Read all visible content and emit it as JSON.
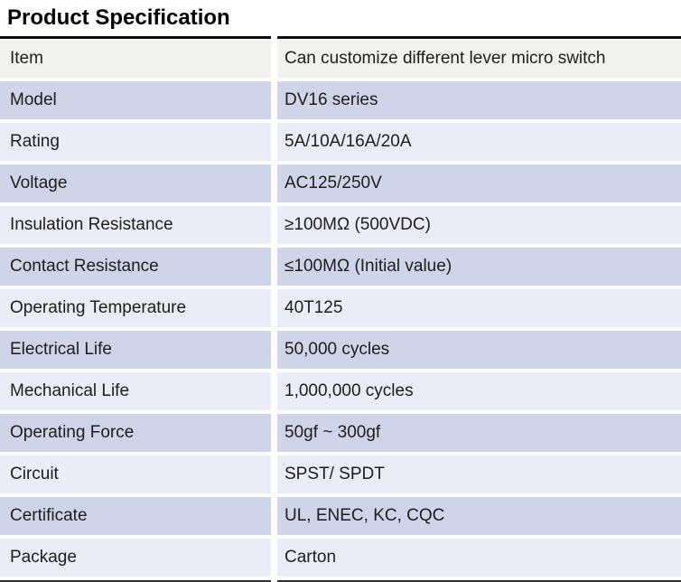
{
  "page": {
    "title": "Product Specification"
  },
  "table": {
    "columns": [
      "label",
      "value"
    ],
    "rows": [
      {
        "label": "Item",
        "value": "Can customize different lever micro switch",
        "tone": "gray"
      },
      {
        "label": "Model",
        "value": "DV16 series",
        "tone": "dark"
      },
      {
        "label": "Rating",
        "value": "5A/10A/16A/20A",
        "tone": "light"
      },
      {
        "label": "Voltage",
        "value": "AC125/250V",
        "tone": "dark"
      },
      {
        "label": "Insulation Resistance",
        "value": "≥100MΩ (500VDC)",
        "tone": "light"
      },
      {
        "label": "Contact Resistance",
        "value": "≤100MΩ (Initial value)",
        "tone": "dark"
      },
      {
        "label": "Operating Temperature",
        "value": "40T125",
        "tone": "light"
      },
      {
        "label": "Electrical Life",
        "value": "50,000 cycles",
        "tone": "dark"
      },
      {
        "label": "Mechanical Life",
        "value": "1,000,000 cycles",
        "tone": "light"
      },
      {
        "label": "Operating Force",
        "value": "50gf ~ 300gf",
        "tone": "dark"
      },
      {
        "label": "Circuit",
        "value": "SPST/ SPDT",
        "tone": "light"
      },
      {
        "label": "Certificate",
        "value": "UL, ENEC, KC, CQC",
        "tone": "dark"
      },
      {
        "label": "Package",
        "value": "Carton",
        "tone": "light"
      }
    ]
  },
  "colors": {
    "row_gray": "#f2f2f1",
    "row_dark": "#d0d4e8",
    "row_light": "#eaecf6",
    "rule_top": "#0b0b0b",
    "rule_bottom": "#2e2e2e",
    "text": "#1d1d1d",
    "title": "#000000"
  }
}
